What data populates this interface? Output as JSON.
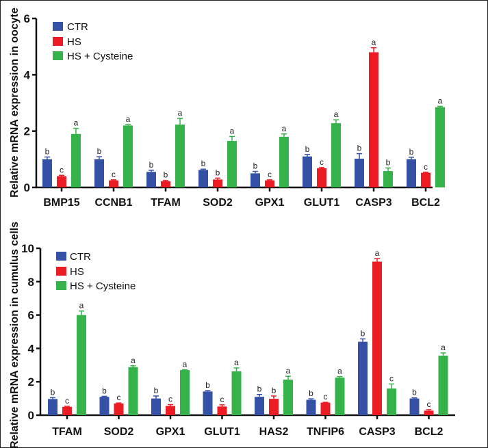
{
  "colors": {
    "CTR": "#3451a6",
    "HS": "#ec1c24",
    "HS + Cysteine": "#36b24a"
  },
  "chart_data": [
    {
      "type": "bar",
      "title": "",
      "xlabel": "",
      "ylabel": "Relative mRNA expression in oocyte",
      "ylim": [
        0,
        6
      ],
      "yticks": [
        0,
        2,
        4,
        6
      ],
      "legend_position": "top-left",
      "categories": [
        "BMP15",
        "CCNB1",
        "TFAM",
        "SOD2",
        "GPX1",
        "GLUT1",
        "CASP3",
        "BCL2"
      ],
      "series": [
        {
          "name": "CTR",
          "values": [
            1.0,
            1.0,
            0.55,
            0.62,
            0.5,
            1.1,
            1.02,
            1.0
          ],
          "errors": [
            0.08,
            0.09,
            0.06,
            0.03,
            0.07,
            0.07,
            0.18,
            0.07
          ],
          "letters": [
            "b",
            "b",
            "b",
            "b",
            "b",
            "b",
            "b",
            "b"
          ]
        },
        {
          "name": "HS",
          "values": [
            0.4,
            0.25,
            0.22,
            0.28,
            0.25,
            0.68,
            4.8,
            0.52
          ],
          "errors": [
            0.03,
            0.02,
            0.03,
            0.05,
            0.02,
            0.03,
            0.16,
            0.02
          ],
          "letters": [
            "c",
            "c",
            "b",
            "b",
            "c",
            "c",
            "a",
            "c"
          ]
        },
        {
          "name": "HS + Cysteine",
          "values": [
            1.9,
            2.2,
            2.23,
            1.65,
            1.8,
            2.28,
            0.58,
            2.85
          ],
          "errors": [
            0.2,
            0.03,
            0.22,
            0.16,
            0.1,
            0.12,
            0.11,
            0.03
          ],
          "letters": [
            "a",
            "a",
            "a",
            "a",
            "a",
            "a",
            "b",
            "a"
          ]
        }
      ]
    },
    {
      "type": "bar",
      "title": "",
      "xlabel": "",
      "ylabel": "Relative mRNA expression in cumulus cells",
      "ylim": [
        0,
        10
      ],
      "yticks": [
        0,
        2,
        4,
        6,
        8,
        10
      ],
      "legend_position": "top-left",
      "categories": [
        "TFAM",
        "SOD2",
        "GPX1",
        "GLUT1",
        "HAS2",
        "TNFIP6",
        "CASP3",
        "BCL2"
      ],
      "series": [
        {
          "name": "CTR",
          "values": [
            0.97,
            1.1,
            1.0,
            1.42,
            1.1,
            0.92,
            4.4,
            1.0
          ],
          "errors": [
            0.08,
            0.03,
            0.15,
            0.05,
            0.14,
            0.06,
            0.17,
            0.04
          ],
          "letters": [
            "b",
            "b",
            "b",
            "b",
            "b",
            "b",
            "b",
            "b"
          ]
        },
        {
          "name": "HS",
          "values": [
            0.5,
            0.7,
            0.55,
            0.52,
            0.98,
            0.75,
            9.2,
            0.27
          ],
          "errors": [
            0.03,
            0.03,
            0.08,
            0.1,
            0.17,
            0.02,
            0.18,
            0.06
          ],
          "letters": [
            "c",
            "c",
            "c",
            "c",
            "b",
            "c",
            "a",
            "c"
          ]
        },
        {
          "name": "HS + Cysteine",
          "values": [
            6.0,
            2.88,
            2.7,
            2.63,
            2.13,
            2.25,
            1.6,
            3.57
          ],
          "errors": [
            0.24,
            0.08,
            0.02,
            0.2,
            0.2,
            0.06,
            0.27,
            0.16
          ],
          "letters": [
            "a",
            "a",
            "a",
            "a",
            "a",
            "a",
            "c",
            "a"
          ]
        }
      ]
    }
  ]
}
